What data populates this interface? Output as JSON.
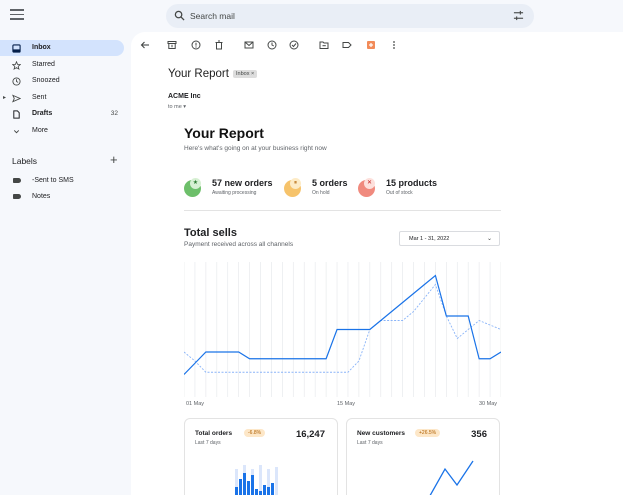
{
  "search": {
    "placeholder": "Search mail"
  },
  "sidebar": {
    "items": [
      {
        "label": "Inbox",
        "icon": "inbox-icon"
      },
      {
        "label": "Starred",
        "icon": "star-icon"
      },
      {
        "label": "Snoozed",
        "icon": "clock-icon"
      },
      {
        "label": "Sent",
        "icon": "send-icon"
      },
      {
        "label": "Drafts",
        "icon": "draft-icon",
        "count": "32"
      },
      {
        "label": "More",
        "icon": "chevron-down-icon"
      }
    ],
    "labels_heading": "Labels",
    "labels": [
      {
        "label": "-Sent to SMS"
      },
      {
        "label": "Notes"
      }
    ]
  },
  "email": {
    "subject": "Your Report",
    "chip": "Inbox ×",
    "sender": "ACME Inc",
    "to": "to me ▾"
  },
  "report": {
    "title": "Your Report",
    "subtitle": "Here's what's going on at your business right now",
    "stats": [
      {
        "value": "57 new orders",
        "caption": "Awaiting processing",
        "color": "#6dbf6a",
        "badge_color": "#d7f0d3",
        "badge": "★"
      },
      {
        "value": "5 orders",
        "caption": "On hold",
        "color": "#f6c36b",
        "badge_color": "#fdebc6",
        "badge": "⏸"
      },
      {
        "value": "15 products",
        "caption": "Out of stock",
        "color": "#f08a7e",
        "badge_color": "#fde0dc",
        "badge": "✕"
      }
    ],
    "sales": {
      "title": "Total sells",
      "subtitle": "Payment received across all channels",
      "range": "Mar 1 - 31, 2022",
      "x_labels": [
        "01 May",
        "15 May",
        "30 May"
      ]
    },
    "cards": [
      {
        "title": "Total orders",
        "badge": "-6.8%",
        "sub": "Last 7 days",
        "value": "16,247"
      },
      {
        "title": "New customers",
        "badge": "+26.5%",
        "sub": "Last 7 days",
        "value": "356"
      }
    ]
  },
  "colors": {
    "accent": "#1a73e8",
    "active_nav": "#d3e3fd",
    "light_line": "#8ab4f8"
  },
  "chart_data": {
    "type": "line",
    "x": [
      1,
      2,
      3,
      4,
      5,
      6,
      7,
      8,
      9,
      10,
      11,
      12,
      13,
      14,
      15,
      16,
      17,
      18,
      19,
      20,
      21,
      22,
      23,
      24,
      25,
      26,
      27,
      28,
      29,
      30
    ],
    "series": [
      {
        "values": [
          10,
          15,
          20,
          20,
          20,
          20,
          17,
          17,
          17,
          17,
          17,
          17,
          17,
          17,
          30,
          30,
          30,
          30,
          34,
          38,
          42,
          46,
          50,
          54,
          36,
          36,
          36,
          17,
          17,
          20
        ]
      },
      {
        "values": [
          20,
          16,
          11,
          11,
          11,
          11,
          11,
          11,
          11,
          11,
          11,
          11,
          11,
          11,
          11,
          11,
          16,
          30,
          34,
          34,
          34,
          38,
          44,
          50,
          36,
          26,
          30,
          34,
          32,
          30
        ]
      }
    ],
    "x_tick_labels": [
      "01 May",
      "15 May",
      "30 May"
    ],
    "grid": "vertical"
  }
}
